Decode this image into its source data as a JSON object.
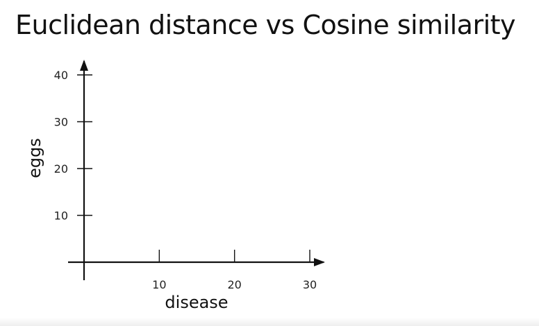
{
  "slide": {
    "title": "Euclidean distance vs Cosine similarity"
  },
  "chart_data": {
    "type": "scatter",
    "title": "Euclidean distance vs Cosine similarity",
    "xlabel": "disease",
    "ylabel": "eggs",
    "x_ticks": [
      10,
      20,
      30
    ],
    "y_ticks": [
      10,
      20,
      30,
      40
    ],
    "xlim": [
      0,
      30
    ],
    "ylim": [
      0,
      40
    ],
    "grid": false,
    "series": []
  }
}
